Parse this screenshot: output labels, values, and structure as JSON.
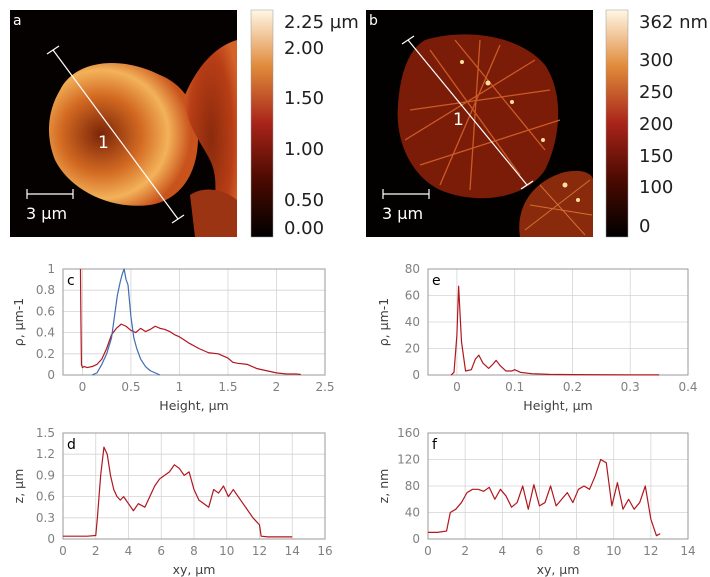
{
  "images": {
    "a": {
      "letter": "a",
      "scale_bar": "3 µm",
      "line_label": "1",
      "colorbar_ticks": [
        "2.25 µm",
        "2.00",
        "1.50",
        "1.00",
        "0.50",
        "0.00"
      ]
    },
    "b": {
      "letter": "b",
      "scale_bar": "3 µm",
      "line_label": "1",
      "colorbar_ticks": [
        "362 nm",
        "300",
        "250",
        "200",
        "150",
        "100",
        "0"
      ]
    }
  },
  "colors": {
    "red": "#b0171f",
    "blue": "#3f6db3",
    "grid": "#d4d4d4",
    "axis": "#9a9a9a"
  },
  "chart_data": [
    {
      "panel": "c",
      "type": "line",
      "xlabel": "Height, µm",
      "ylabel": "ρ, µm-1",
      "xlim": [
        -0.2,
        2.5
      ],
      "ylim": [
        0,
        1
      ],
      "xticks": [
        "0",
        "0.5",
        "1",
        "1.5",
        "2",
        "2.5"
      ],
      "yticks": [
        "0",
        "0.2",
        "0.4",
        "0.6",
        "0.8",
        "1"
      ],
      "grid": true,
      "series": [
        {
          "color": "red",
          "x": [
            -0.02,
            -0.015,
            -0.01,
            0,
            0.02,
            0.05,
            0.1,
            0.15,
            0.2,
            0.25,
            0.3,
            0.35,
            0.4,
            0.45,
            0.5,
            0.55,
            0.6,
            0.65,
            0.7,
            0.75,
            0.8,
            0.85,
            0.9,
            0.95,
            1.0,
            1.05,
            1.1,
            1.2,
            1.3,
            1.4,
            1.5,
            1.55,
            1.6,
            1.7,
            1.8,
            1.9,
            2.0,
            2.1,
            2.2,
            2.25
          ],
          "y": [
            1.0,
            0.5,
            0.1,
            0.07,
            0.08,
            0.07,
            0.08,
            0.1,
            0.15,
            0.25,
            0.38,
            0.44,
            0.48,
            0.46,
            0.42,
            0.4,
            0.44,
            0.41,
            0.43,
            0.46,
            0.44,
            0.43,
            0.41,
            0.38,
            0.36,
            0.33,
            0.3,
            0.25,
            0.21,
            0.2,
            0.16,
            0.12,
            0.11,
            0.1,
            0.06,
            0.04,
            0.02,
            0.01,
            0.01,
            0.005
          ]
        },
        {
          "color": "blue",
          "x": [
            0.1,
            0.15,
            0.2,
            0.25,
            0.3,
            0.33,
            0.36,
            0.39,
            0.41,
            0.43,
            0.45,
            0.47,
            0.5,
            0.53,
            0.56,
            0.6,
            0.65,
            0.7,
            0.75,
            0.8
          ],
          "y": [
            0.0,
            0.02,
            0.1,
            0.2,
            0.35,
            0.55,
            0.75,
            0.88,
            0.95,
            1.0,
            0.9,
            0.85,
            0.55,
            0.35,
            0.25,
            0.15,
            0.08,
            0.04,
            0.02,
            0.0
          ]
        }
      ]
    },
    {
      "panel": "e",
      "type": "line",
      "xlabel": "Height, µm",
      "ylabel": "ρ, µm-1",
      "xlim": [
        -0.05,
        0.4
      ],
      "ylim": [
        0,
        80
      ],
      "xticks": [
        "0",
        "0.1",
        "0.2",
        "0.3",
        "0.4"
      ],
      "yticks": [
        "0",
        "20",
        "40",
        "60",
        "80"
      ],
      "grid": true,
      "series": [
        {
          "color": "red",
          "x": [
            -0.01,
            -0.005,
            0,
            0.003,
            0.008,
            0.015,
            0.025,
            0.032,
            0.038,
            0.045,
            0.055,
            0.062,
            0.068,
            0.075,
            0.085,
            0.095,
            0.1,
            0.11,
            0.13,
            0.16,
            0.2,
            0.25,
            0.3,
            0.35
          ],
          "y": [
            0,
            2,
            30,
            67,
            25,
            3,
            4,
            12,
            15,
            9,
            5,
            8,
            11,
            7,
            3,
            3,
            4,
            2,
            1,
            0.5,
            0.3,
            0.2,
            0.1,
            0.1
          ]
        }
      ]
    },
    {
      "panel": "d",
      "type": "line",
      "xlabel": "xy, µm",
      "ylabel": "z, µm",
      "xlim": [
        0,
        16
      ],
      "ylim": [
        0,
        1.5
      ],
      "xticks": [
        "0",
        "2",
        "4",
        "6",
        "8",
        "10",
        "12",
        "14",
        "16"
      ],
      "yticks": [
        "0",
        "0.3",
        "0.6",
        "0.9",
        "1.2",
        "1.5"
      ],
      "grid": true,
      "series": [
        {
          "color": "red",
          "x": [
            0,
            0.5,
            1,
            1.5,
            2,
            2.1,
            2.3,
            2.5,
            2.7,
            2.9,
            3.1,
            3.3,
            3.5,
            3.7,
            4,
            4.3,
            4.6,
            5,
            5.3,
            5.6,
            5.9,
            6.2,
            6.5,
            6.8,
            7.1,
            7.4,
            7.7,
            8,
            8.3,
            8.6,
            8.9,
            9.2,
            9.5,
            9.8,
            10.1,
            10.4,
            10.7,
            11,
            11.3,
            11.6,
            12,
            12.1,
            12.5,
            13,
            14
          ],
          "y": [
            0.04,
            0.04,
            0.04,
            0.04,
            0.05,
            0.3,
            0.9,
            1.3,
            1.2,
            0.9,
            0.7,
            0.6,
            0.55,
            0.6,
            0.5,
            0.4,
            0.5,
            0.45,
            0.6,
            0.75,
            0.85,
            0.9,
            0.95,
            1.05,
            1.0,
            0.9,
            0.95,
            0.7,
            0.55,
            0.5,
            0.45,
            0.7,
            0.65,
            0.75,
            0.6,
            0.7,
            0.6,
            0.5,
            0.4,
            0.3,
            0.2,
            0.04,
            0.03,
            0.03,
            0.03
          ]
        }
      ]
    },
    {
      "panel": "f",
      "type": "line",
      "xlabel": "xy, µm",
      "ylabel": "z, nm",
      "xlim": [
        0,
        14
      ],
      "ylim": [
        0,
        160
      ],
      "xticks": [
        "0",
        "2",
        "4",
        "6",
        "8",
        "10",
        "12",
        "14"
      ],
      "yticks": [
        "0",
        "40",
        "80",
        "120",
        "160"
      ],
      "grid": true,
      "series": [
        {
          "color": "red",
          "x": [
            0,
            0.5,
            1.0,
            1.2,
            1.5,
            1.8,
            2.1,
            2.4,
            2.7,
            3.0,
            3.3,
            3.6,
            3.9,
            4.2,
            4.5,
            4.8,
            5.1,
            5.4,
            5.7,
            6.0,
            6.3,
            6.6,
            6.9,
            7.2,
            7.5,
            7.8,
            8.1,
            8.4,
            8.7,
            9.0,
            9.3,
            9.6,
            9.9,
            10.2,
            10.5,
            10.8,
            11.1,
            11.4,
            11.7,
            12.0,
            12.3,
            12.5
          ],
          "y": [
            10,
            10,
            12,
            40,
            45,
            55,
            70,
            75,
            75,
            72,
            78,
            60,
            75,
            65,
            48,
            55,
            80,
            45,
            82,
            50,
            55,
            80,
            50,
            60,
            70,
            55,
            75,
            80,
            75,
            95,
            120,
            115,
            50,
            85,
            45,
            60,
            45,
            55,
            80,
            30,
            5,
            8
          ]
        }
      ]
    }
  ]
}
